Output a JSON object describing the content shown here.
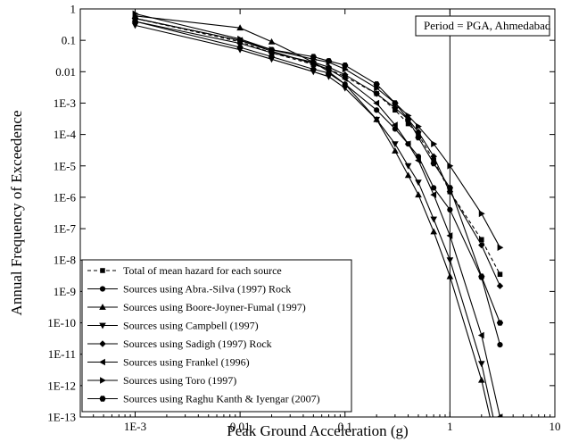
{
  "chart_data": {
    "type": "line",
    "title": "",
    "xlabel": "Peak Ground Acceleration (g)",
    "ylabel": "Annual Frequency of Exceedence",
    "xscale": "log",
    "yscale": "log",
    "xlim": [
      0.0003,
      10
    ],
    "ylim": [
      1e-13,
      1
    ],
    "x_ticks": [
      0.001,
      0.01,
      0.1,
      1,
      10
    ],
    "x_tick_labels": [
      "1E-3",
      "0.01",
      "0.1",
      "1",
      "10"
    ],
    "y_ticks": [
      1,
      0.1,
      0.01,
      0.001,
      0.0001,
      1e-05,
      1e-06,
      1e-07,
      1e-08,
      1e-09,
      1e-10,
      1e-11,
      1e-12,
      1e-13
    ],
    "y_tick_labels": [
      "1",
      "0.1",
      "0.01",
      "1E-3",
      "1E-4",
      "1E-5",
      "1E-6",
      "1E-7",
      "1E-8",
      "1E-9",
      "1E-10",
      "1E-11",
      "1E-12",
      "1E-13"
    ],
    "annotation": "Period = PGA, Ahmedabad",
    "reference_line_x": 1,
    "legend_position": "bottom-left",
    "series": [
      {
        "name": "Total of mean hazard for each source",
        "marker": "square",
        "dashed": true,
        "points": [
          [
            0.001,
            0.5
          ],
          [
            0.01,
            0.09
          ],
          [
            0.02,
            0.04
          ],
          [
            0.05,
            0.017
          ],
          [
            0.07,
            0.012
          ],
          [
            0.1,
            0.007
          ],
          [
            0.2,
            0.002
          ],
          [
            0.3,
            0.0006
          ],
          [
            0.4,
            0.00022
          ],
          [
            0.5,
            0.0001
          ],
          [
            0.7,
            1.5e-05
          ],
          [
            1,
            1.5e-06
          ],
          [
            2,
            4.5e-08
          ],
          [
            3,
            3.5e-09
          ]
        ]
      },
      {
        "name": "Sources using Abra.-Silva (1997) Rock",
        "marker": "circle",
        "dashed": false,
        "points": [
          [
            0.001,
            0.4
          ],
          [
            0.01,
            0.06
          ],
          [
            0.02,
            0.03
          ],
          [
            0.05,
            0.012
          ],
          [
            0.07,
            0.009
          ],
          [
            0.1,
            0.004
          ],
          [
            0.2,
            0.0006
          ],
          [
            0.3,
            0.00015
          ],
          [
            0.4,
            5e-05
          ],
          [
            0.5,
            2e-05
          ],
          [
            0.7,
            2e-06
          ],
          [
            1,
            4e-07
          ],
          [
            2,
            2.8e-09
          ],
          [
            3,
            2e-11
          ]
        ]
      },
      {
        "name": "Sources using Boore-Joyner-Fumal (1997)",
        "marker": "triangle-up",
        "dashed": false,
        "points": [
          [
            0.001,
            0.6
          ],
          [
            0.01,
            0.25
          ],
          [
            0.02,
            0.09
          ],
          [
            0.05,
            0.02
          ],
          [
            0.07,
            0.01
          ],
          [
            0.1,
            0.004
          ],
          [
            0.2,
            0.0003
          ],
          [
            0.3,
            3e-05
          ],
          [
            0.4,
            5e-06
          ],
          [
            0.5,
            1.2e-06
          ],
          [
            0.7,
            8e-08
          ],
          [
            1,
            3e-09
          ],
          [
            2,
            1.5e-12
          ],
          [
            3,
            4e-15
          ]
        ]
      },
      {
        "name": "Sources using Campbell (1997)",
        "marker": "triangle-down",
        "dashed": false,
        "points": [
          [
            0.001,
            0.3
          ],
          [
            0.01,
            0.05
          ],
          [
            0.02,
            0.025
          ],
          [
            0.05,
            0.01
          ],
          [
            0.07,
            0.007
          ],
          [
            0.1,
            0.003
          ],
          [
            0.2,
            0.0003
          ],
          [
            0.3,
            5e-05
          ],
          [
            0.4,
            1e-05
          ],
          [
            0.5,
            3e-06
          ],
          [
            0.7,
            2e-07
          ],
          [
            1,
            1e-08
          ],
          [
            2,
            5e-12
          ],
          [
            3,
            1e-14
          ]
        ]
      },
      {
        "name": "Sources using Sadigh (1997) Rock",
        "marker": "diamond",
        "dashed": false,
        "points": [
          [
            0.001,
            0.4
          ],
          [
            0.01,
            0.08
          ],
          [
            0.02,
            0.04
          ],
          [
            0.05,
            0.02
          ],
          [
            0.07,
            0.014
          ],
          [
            0.1,
            0.008
          ],
          [
            0.2,
            0.002
          ],
          [
            0.3,
            0.0007
          ],
          [
            0.4,
            0.0003
          ],
          [
            0.5,
            0.00012
          ],
          [
            0.7,
            2e-05
          ],
          [
            1,
            1.5e-06
          ],
          [
            2,
            3e-08
          ],
          [
            3,
            1.5e-09
          ]
        ]
      },
      {
        "name": "Sources using Frankel (1996)",
        "marker": "triangle-left",
        "dashed": false,
        "points": [
          [
            0.001,
            0.5
          ],
          [
            0.01,
            0.1
          ],
          [
            0.02,
            0.045
          ],
          [
            0.05,
            0.018
          ],
          [
            0.07,
            0.012
          ],
          [
            0.1,
            0.006
          ],
          [
            0.2,
            0.001
          ],
          [
            0.3,
            0.0002
          ],
          [
            0.4,
            5e-05
          ],
          [
            0.5,
            1.5e-05
          ],
          [
            0.7,
            1.2e-06
          ],
          [
            1,
            6e-08
          ],
          [
            2,
            4e-11
          ],
          [
            3,
            1e-13
          ]
        ]
      },
      {
        "name": "Sources using Toro (1997)",
        "marker": "triangle-right",
        "dashed": false,
        "points": [
          [
            0.001,
            0.7
          ],
          [
            0.01,
            0.11
          ],
          [
            0.02,
            0.05
          ],
          [
            0.05,
            0.025
          ],
          [
            0.07,
            0.02
          ],
          [
            0.1,
            0.012
          ],
          [
            0.2,
            0.003
          ],
          [
            0.3,
            0.001
          ],
          [
            0.4,
            0.0004
          ],
          [
            0.5,
            0.00018
          ],
          [
            0.7,
            5e-05
          ],
          [
            1,
            1e-05
          ],
          [
            2,
            3e-07
          ],
          [
            3,
            2.5e-08
          ]
        ]
      },
      {
        "name": "Sources using Raghu Kanth & Iyengar (2007)",
        "marker": "hexagon",
        "dashed": false,
        "points": [
          [
            0.001,
            0.5
          ],
          [
            0.01,
            0.1
          ],
          [
            0.02,
            0.05
          ],
          [
            0.05,
            0.03
          ],
          [
            0.07,
            0.022
          ],
          [
            0.1,
            0.016
          ],
          [
            0.2,
            0.004
          ],
          [
            0.3,
            0.001
          ],
          [
            0.4,
            0.0003
          ],
          [
            0.5,
            8e-05
          ],
          [
            0.7,
            1.2e-05
          ],
          [
            1,
            2e-06
          ],
          [
            2,
            3e-09
          ],
          [
            3,
            1e-10
          ]
        ]
      }
    ]
  }
}
